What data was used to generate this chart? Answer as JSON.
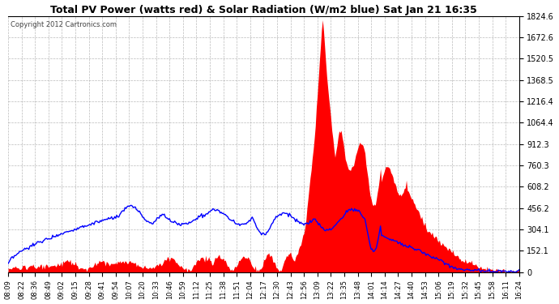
{
  "title": "Total PV Power (watts red) & Solar Radiation (W/m2 blue) Sat Jan 21 16:35",
  "copyright": "Copyright 2012 Cartronics.com",
  "ymax": 1824.6,
  "yticks": [
    0.0,
    152.1,
    304.1,
    456.2,
    608.2,
    760.3,
    912.3,
    1064.4,
    1216.4,
    1368.5,
    1520.5,
    1672.6,
    1824.6
  ],
  "xtick_labels": [
    "08:09",
    "08:22",
    "08:36",
    "08:49",
    "09:02",
    "09:15",
    "09:28",
    "09:41",
    "09:54",
    "10:07",
    "10:20",
    "10:33",
    "10:46",
    "10:59",
    "11:12",
    "11:25",
    "11:38",
    "11:51",
    "12:04",
    "12:17",
    "12:30",
    "12:43",
    "12:56",
    "13:09",
    "13:22",
    "13:35",
    "13:48",
    "14:01",
    "14:14",
    "14:27",
    "14:40",
    "14:53",
    "15:06",
    "15:19",
    "15:32",
    "15:45",
    "15:58",
    "16:11",
    "16:24"
  ],
  "bg_color": "#ffffff",
  "plot_bg_color": "#ffffff",
  "grid_color": "#aaaaaa",
  "red_color": "#ff0000",
  "blue_color": "#0000ff",
  "title_color": "#000000"
}
